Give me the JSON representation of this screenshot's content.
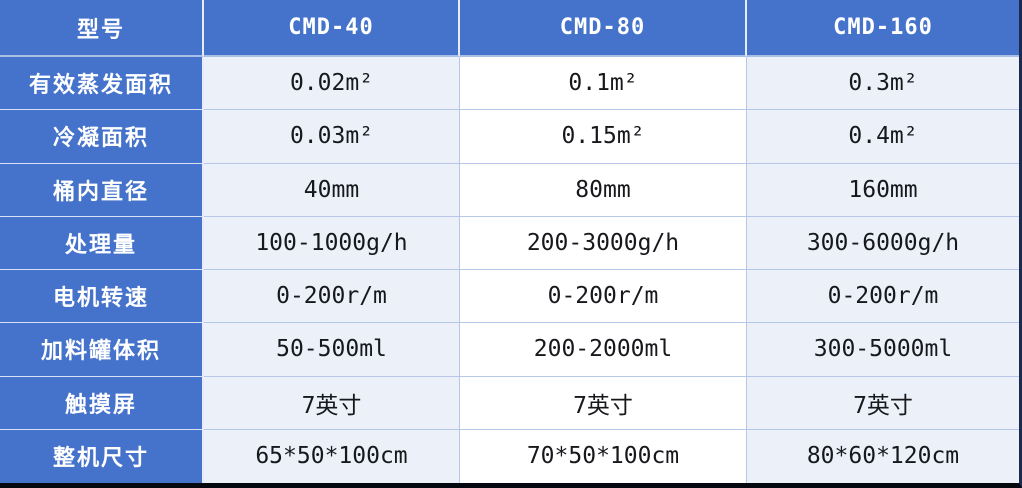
{
  "table": {
    "title": "product-specification-table",
    "columns": [
      "型号",
      "CMD-40",
      "CMD-80",
      "CMD-160"
    ],
    "rows": [
      {
        "label": "有效蒸发面积",
        "values": [
          "0.02m²",
          "0.1m²",
          "0.3m²"
        ]
      },
      {
        "label": "冷凝面积",
        "values": [
          "0.03m²",
          "0.15m²",
          "0.4m²"
        ]
      },
      {
        "label": "桶内直径",
        "values": [
          "40mm",
          "80mm",
          "160mm"
        ]
      },
      {
        "label": "处理量",
        "values": [
          "100-1000g/h",
          "200-3000g/h",
          "300-6000g/h"
        ]
      },
      {
        "label": "电机转速",
        "values": [
          "0-200r/m",
          "0-200r/m",
          "0-200r/m"
        ]
      },
      {
        "label": "加料罐体积",
        "values": [
          "50-500ml",
          "200-2000ml",
          "300-5000ml"
        ]
      },
      {
        "label": "触摸屏",
        "values": [
          "7英寸",
          "7英寸",
          "7英寸"
        ]
      },
      {
        "label": "整机尺寸",
        "values": [
          "65*50*100cm",
          "70*50*100cm",
          "80*60*120cm"
        ]
      }
    ],
    "colors": {
      "header_bg": "#4573cb",
      "header_text": "#ffffff",
      "band_light": "#ebf0f9",
      "band_white": "#ffffff",
      "grid_line": "#b7c7e8",
      "blue_cell_divider": "#d9e1f4",
      "outer_border_right": "#1b2a4f",
      "outer_border_bottom": "#05080f"
    }
  }
}
